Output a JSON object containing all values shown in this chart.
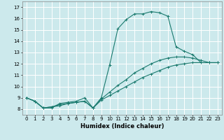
{
  "title": "",
  "xlabel": "Humidex (Indice chaleur)",
  "ylabel": "",
  "bg_color": "#cce9ec",
  "grid_color": "#ffffff",
  "line_color": "#1a7a6e",
  "xlim": [
    -0.5,
    23.5
  ],
  "ylim": [
    7.5,
    17.5
  ],
  "xticks": [
    0,
    1,
    2,
    3,
    4,
    5,
    6,
    7,
    8,
    9,
    10,
    11,
    12,
    13,
    14,
    15,
    16,
    17,
    18,
    19,
    20,
    21,
    22,
    23
  ],
  "yticks": [
    8,
    9,
    10,
    11,
    12,
    13,
    14,
    15,
    16,
    17
  ],
  "line1_x": [
    0,
    1,
    2,
    3,
    4,
    5,
    6,
    7,
    8,
    9,
    10,
    11,
    12,
    13,
    14,
    15,
    16,
    17,
    18,
    19,
    20,
    21,
    22,
    23
  ],
  "line1_y": [
    9.0,
    8.7,
    8.1,
    8.1,
    8.5,
    8.6,
    8.7,
    9.0,
    8.1,
    9.0,
    11.9,
    15.1,
    15.9,
    16.4,
    16.4,
    16.6,
    16.5,
    16.2,
    13.5,
    13.1,
    12.8,
    12.1,
    12.1,
    12.1
  ],
  "line2_x": [
    0,
    1,
    2,
    3,
    4,
    5,
    6,
    7,
    8,
    9,
    10,
    11,
    12,
    13,
    14,
    15,
    16,
    17,
    18,
    19,
    20,
    21,
    22,
    23
  ],
  "line2_y": [
    9.0,
    8.7,
    8.1,
    8.2,
    8.4,
    8.5,
    8.6,
    8.7,
    8.1,
    8.9,
    9.5,
    10.1,
    10.6,
    11.2,
    11.6,
    12.0,
    12.3,
    12.5,
    12.6,
    12.6,
    12.5,
    12.3,
    12.1,
    12.1
  ],
  "line3_x": [
    0,
    1,
    2,
    3,
    4,
    5,
    6,
    7,
    8,
    9,
    10,
    11,
    12,
    13,
    14,
    15,
    16,
    17,
    18,
    19,
    20,
    21,
    22,
    23
  ],
  "line3_y": [
    9.0,
    8.7,
    8.1,
    8.2,
    8.3,
    8.5,
    8.6,
    8.7,
    8.1,
    8.8,
    9.2,
    9.6,
    10.0,
    10.4,
    10.8,
    11.1,
    11.4,
    11.7,
    11.9,
    12.0,
    12.1,
    12.1,
    12.1,
    12.1
  ],
  "xlabel_fontsize": 6,
  "tick_fontsize": 5,
  "lw": 0.8,
  "marker_size": 2.5
}
